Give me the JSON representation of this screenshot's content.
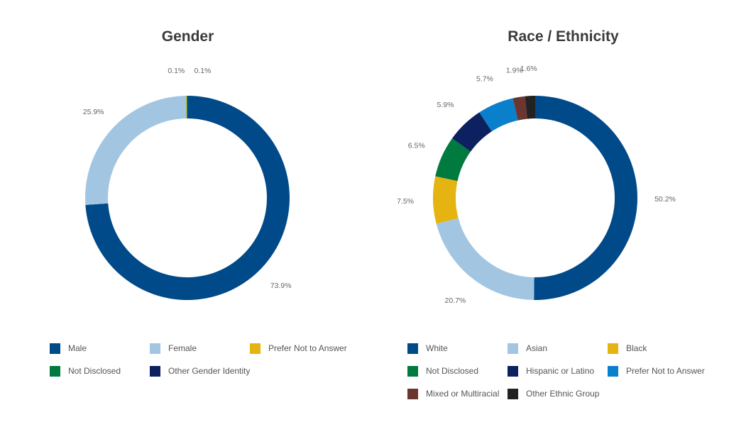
{
  "chart_data": [
    {
      "type": "pie",
      "title": "Gender",
      "donut": true,
      "slices": [
        {
          "name": "Male",
          "value": 73.9,
          "label": "73.9%",
          "color": "#004a8a"
        },
        {
          "name": "Female",
          "value": 25.9,
          "label": "25.9%",
          "color": "#a2c6e2"
        },
        {
          "name": "Prefer Not to Answer",
          "value": 0.1,
          "label": "0.1%",
          "color": "#e5b412"
        },
        {
          "name": "Not Disclosed",
          "value": 0.1,
          "label": "0.1%",
          "color": "#007a3e"
        },
        {
          "name": "Other Gender Identity",
          "value": 0.0,
          "label": "",
          "color": "#0d2060"
        }
      ],
      "legend": [
        "Male",
        "Female",
        "Prefer Not to Answer",
        "Not Disclosed",
        "Other Gender Identity"
      ]
    },
    {
      "type": "pie",
      "title": "Race / Ethnicity",
      "donut": true,
      "slices": [
        {
          "name": "White",
          "value": 50.2,
          "label": "50.2%",
          "color": "#004a8a"
        },
        {
          "name": "Asian",
          "value": 20.7,
          "label": "20.7%",
          "color": "#a2c6e2"
        },
        {
          "name": "Black",
          "value": 7.5,
          "label": "7.5%",
          "color": "#e5b412"
        },
        {
          "name": "Not Disclosed",
          "value": 6.5,
          "label": "6.5%",
          "color": "#007a3e"
        },
        {
          "name": "Hispanic or Latino",
          "value": 5.9,
          "label": "5.9%",
          "color": "#0d2060"
        },
        {
          "name": "Prefer Not to Answer",
          "value": 5.7,
          "label": "5.7%",
          "color": "#0a7fcc"
        },
        {
          "name": "Mixed or Multiracial",
          "value": 1.9,
          "label": "1.9%",
          "color": "#6b3530"
        },
        {
          "name": "Other Ethnic Group",
          "value": 1.6,
          "label": "1.6%",
          "color": "#222222"
        }
      ],
      "legend": [
        "White",
        "Asian",
        "Black",
        "Not Disclosed",
        "Hispanic or Latino",
        "Prefer Not to Answer",
        "Mixed or Multiracial",
        "Other Ethnic Group"
      ]
    }
  ]
}
